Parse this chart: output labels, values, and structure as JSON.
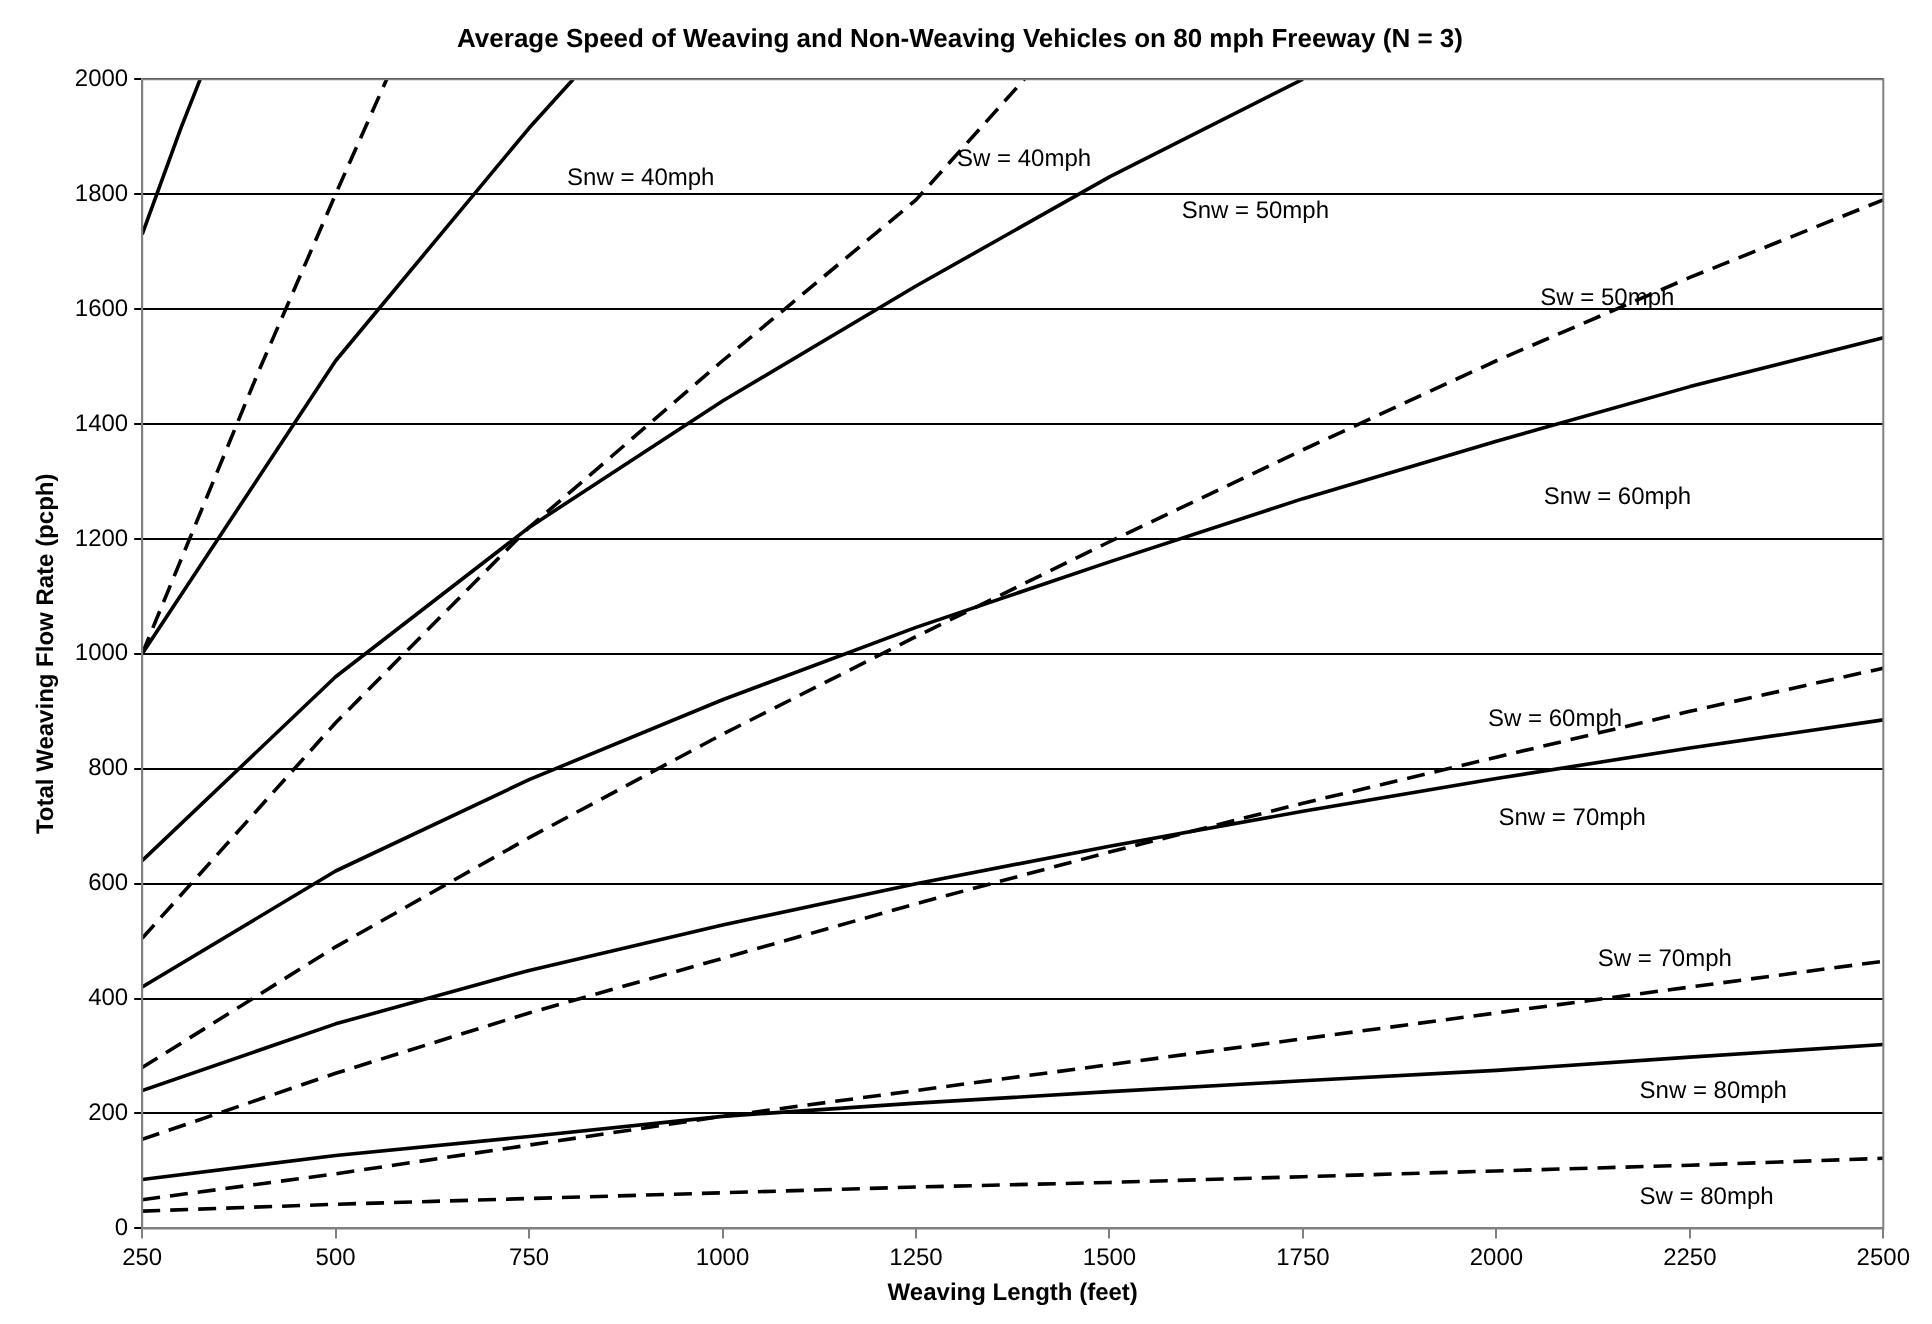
{
  "chart_data": {
    "type": "line",
    "title": "Average Speed of Weaving and Non-Weaving Vehicles on 80 mph Freeway (N = 3)",
    "xlabel": "Weaving Length (feet)",
    "ylabel": "Total Weaving Flow Rate (pcph)",
    "xlim": [
      250,
      2500
    ],
    "xticks": [
      250,
      500,
      750,
      1000,
      1250,
      1500,
      1750,
      2000,
      2250,
      2500
    ],
    "ylim": [
      0,
      2000
    ],
    "yticks": [
      0,
      200,
      400,
      600,
      800,
      1000,
      1200,
      1400,
      1600,
      1800,
      2000
    ],
    "grid": "y",
    "legend": false,
    "marker": "none",
    "series": [
      {
        "color": "#000000",
        "line_style": "solid",
        "x": [
          250,
          300,
          325
        ],
        "values": [
          1730,
          1915,
          2000
        ]
      },
      {
        "color": "#000000",
        "line_style": "dashed",
        "x": [
          250,
          400,
          500,
          566
        ],
        "values": [
          1000,
          1490,
          1800,
          2000
        ]
      },
      {
        "name": "Snw = 40mph",
        "color": "#000000",
        "line_style": "solid",
        "x": [
          250,
          500,
          750,
          807
        ],
        "values": [
          1000,
          1510,
          1915,
          2000
        ]
      },
      {
        "name": "Sw = 40mph",
        "color": "#000000",
        "line_style": "dashed",
        "x": [
          250,
          500,
          750,
          1000,
          1250,
          1390
        ],
        "values": [
          505,
          880,
          1220,
          1510,
          1790,
          2000
        ]
      },
      {
        "name": "Snw = 50mph",
        "color": "#000000",
        "line_style": "solid",
        "x": [
          250,
          500,
          750,
          1000,
          1250,
          1500,
          1750
        ],
        "values": [
          640,
          960,
          1220,
          1440,
          1640,
          1830,
          2000
        ]
      },
      {
        "name": "Sw = 50mph",
        "color": "#000000",
        "line_style": "dashed",
        "x": [
          250,
          500,
          750,
          1000,
          1250,
          1500,
          1750,
          2000,
          2250,
          2500
        ],
        "values": [
          280,
          490,
          680,
          860,
          1030,
          1195,
          1355,
          1510,
          1655,
          1790
        ]
      },
      {
        "name": "Snw = 60mph",
        "color": "#000000",
        "line_style": "solid",
        "x": [
          250,
          500,
          750,
          1000,
          1250,
          1500,
          1750,
          2000,
          2250,
          2500
        ],
        "values": [
          420,
          622,
          781,
          920,
          1046,
          1160,
          1270,
          1370,
          1465,
          1550
        ]
      },
      {
        "name": "Sw = 60mph",
        "color": "#000000",
        "line_style": "dashed",
        "x": [
          250,
          500,
          750,
          1000,
          1250,
          1500,
          1750,
          2000,
          2250,
          2500
        ],
        "values": [
          155,
          270,
          375,
          470,
          565,
          655,
          740,
          820,
          900,
          975
        ]
      },
      {
        "name": "Snw = 70mph",
        "color": "#000000",
        "line_style": "solid",
        "x": [
          250,
          500,
          750,
          1000,
          1250,
          1500,
          1750,
          2000,
          2250,
          2500
        ],
        "values": [
          240,
          356,
          449,
          528,
          600,
          665,
          726,
          783,
          836,
          885
        ]
      },
      {
        "name": "Sw = 70mph",
        "color": "#000000",
        "line_style": "dashed",
        "x": [
          250,
          500,
          750,
          1000,
          1250,
          1500,
          1750,
          2000,
          2250,
          2500
        ],
        "values": [
          50,
          95,
          145,
          195,
          240,
          285,
          330,
          375,
          420,
          465
        ]
      },
      {
        "name": "Snw = 80mph",
        "color": "#000000",
        "line_style": "solid",
        "x": [
          250,
          500,
          750,
          1000,
          1250,
          1500,
          1750,
          2000,
          2250,
          2500
        ],
        "values": [
          85,
          127,
          160,
          195,
          218,
          238,
          257,
          275,
          298,
          320
        ]
      },
      {
        "name": "Sw = 80mph",
        "color": "#000000",
        "line_style": "dashed",
        "x": [
          250,
          500,
          750,
          1000,
          1250,
          1500,
          1750,
          2000,
          2250,
          2500
        ],
        "values": [
          30,
          42,
          52,
          62,
          72,
          80,
          90,
          100,
          110,
          122
        ]
      }
    ]
  }
}
